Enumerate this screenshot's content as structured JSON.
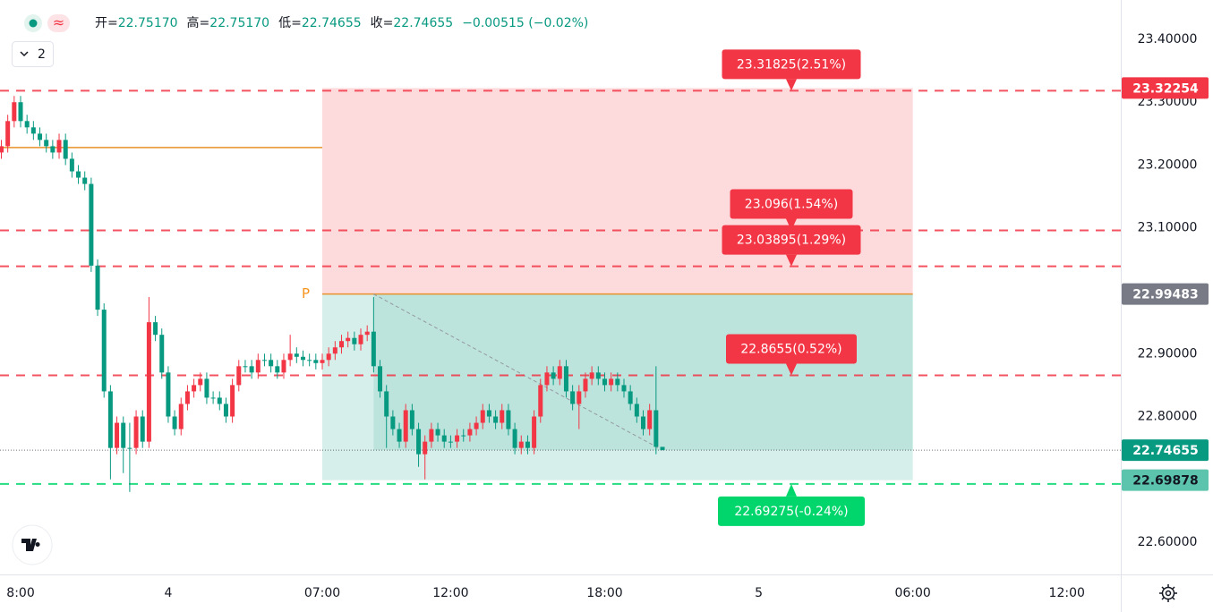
{
  "chart_data": {
    "type": "candlestick",
    "legend_values": [
      {
        "label": "开=",
        "value": "22.75170"
      },
      {
        "label": "高=",
        "value": "22.75170"
      },
      {
        "label": "低=",
        "value": "22.74655"
      },
      {
        "label": "收=",
        "value": "22.74655"
      }
    ],
    "change": "−0.00515 (−0.02%)",
    "interval_button": "2",
    "categories": [
      null,
      null,
      null,
      "8:00",
      null,
      null,
      null,
      null,
      null,
      null,
      null,
      null,
      null,
      null,
      null,
      null,
      null,
      null,
      null,
      null,
      null,
      null,
      null,
      null,
      null,
      null,
      "4",
      null,
      null,
      null,
      null,
      null,
      null,
      null,
      null,
      null,
      null,
      null,
      null,
      null,
      null,
      null,
      null,
      null,
      null,
      null,
      null,
      null,
      null,
      null,
      "07:00",
      null,
      null,
      null,
      null,
      null,
      null,
      null,
      null,
      null,
      null,
      null,
      null,
      null,
      null,
      null,
      null,
      null,
      null,
      null,
      "12:00",
      null,
      null,
      null,
      null,
      null,
      null,
      null,
      null,
      null,
      null,
      null,
      null,
      null,
      null,
      null,
      null,
      null,
      null,
      null,
      null,
      null,
      null,
      null,
      "18:00",
      null,
      null,
      null,
      null,
      null,
      null,
      null,
      null,
      null,
      null,
      null,
      null,
      null,
      null,
      null,
      null,
      null,
      null,
      null,
      null,
      null,
      null,
      null,
      "5",
      null,
      null,
      null,
      null,
      null,
      null,
      null,
      null,
      null,
      null,
      null,
      null,
      null,
      null,
      null,
      null,
      null,
      null,
      null,
      null,
      null,
      null,
      null,
      "06:00",
      null,
      null,
      null,
      null,
      null,
      null,
      null,
      null,
      null,
      null,
      null,
      null,
      null,
      null,
      null,
      null,
      null,
      null,
      null,
      null,
      null,
      null,
      null,
      "12:00",
      null,
      null,
      null,
      null,
      null,
      null,
      null,
      null
    ],
    "open": [
      23.22,
      23.23,
      23.27,
      23.3,
      23.27,
      23.26,
      23.25,
      23.24,
      23.23,
      23.22,
      23.24,
      23.21,
      23.19,
      23.18,
      23.17,
      23.04,
      22.97,
      22.84,
      22.75,
      22.79,
      22.75,
      22.75,
      22.8,
      22.76,
      22.95,
      22.93,
      22.87,
      22.8,
      22.78,
      22.82,
      22.84,
      22.85,
      22.86,
      22.83,
      22.83,
      22.82,
      22.8,
      22.85,
      22.88,
      22.88,
      22.87,
      22.89,
      22.89,
      22.88,
      22.87,
      22.89,
      22.9,
      22.895,
      22.89,
      22.89,
      22.885,
      22.89,
      22.9,
      22.91,
      22.92,
      22.925,
      22.915,
      22.93,
      22.935,
      22.88,
      22.84,
      22.8,
      22.78,
      22.76,
      22.81,
      22.78,
      22.74,
      22.76,
      22.78,
      22.77,
      22.76,
      22.76,
      22.77,
      22.77,
      22.78,
      22.79,
      22.81,
      22.8,
      22.79,
      22.81,
      22.78,
      22.75,
      22.76,
      22.75,
      22.8,
      22.85,
      22.87,
      22.86,
      22.88,
      22.84,
      22.82,
      22.84,
      22.86,
      22.87,
      22.86,
      22.85,
      22.86,
      22.85,
      22.84,
      22.82,
      22.8,
      22.78,
      22.81,
      22.7517,
      null,
      null,
      null,
      null,
      null,
      null,
      null,
      null,
      null,
      null,
      null,
      null,
      null,
      null,
      null,
      null,
      null,
      null,
      null,
      null,
      null,
      null,
      null,
      null,
      null,
      null,
      null,
      null,
      null,
      null,
      null,
      null,
      null,
      null,
      null,
      null,
      null,
      null,
      null,
      null,
      null,
      null,
      null,
      null,
      null,
      null,
      null,
      null,
      null,
      null,
      null,
      null,
      null,
      null,
      null,
      null,
      null,
      null,
      null,
      null,
      null,
      null,
      null,
      null,
      null,
      null,
      null,
      null,
      null,
      null,
      null
    ],
    "high": [
      23.24,
      23.28,
      23.31,
      23.31,
      23.28,
      23.27,
      23.26,
      23.25,
      23.24,
      23.25,
      23.25,
      23.22,
      23.2,
      23.19,
      23.18,
      23.05,
      22.98,
      22.85,
      22.8,
      22.8,
      22.79,
      22.81,
      22.81,
      22.99,
      22.96,
      22.94,
      22.88,
      22.81,
      22.83,
      22.85,
      22.86,
      22.87,
      22.87,
      22.84,
      22.84,
      22.83,
      22.86,
      22.89,
      22.89,
      22.89,
      22.9,
      22.9,
      22.9,
      22.89,
      22.9,
      22.93,
      22.91,
      22.905,
      22.9,
      22.9,
      22.9,
      22.91,
      22.92,
      22.93,
      22.935,
      22.935,
      22.94,
      22.945,
      22.99,
      22.89,
      22.85,
      22.81,
      22.79,
      22.82,
      22.82,
      22.79,
      22.77,
      22.79,
      22.79,
      22.78,
      22.77,
      22.78,
      22.78,
      22.79,
      22.8,
      22.82,
      22.82,
      22.81,
      22.82,
      22.82,
      22.79,
      22.77,
      22.77,
      22.81,
      22.86,
      22.88,
      22.88,
      22.89,
      22.89,
      22.85,
      22.85,
      22.87,
      22.88,
      22.88,
      22.87,
      22.87,
      22.87,
      22.86,
      22.85,
      22.83,
      22.81,
      22.82,
      22.88,
      22.7517,
      null,
      null,
      null,
      null,
      null,
      null,
      null,
      null,
      null,
      null,
      null,
      null,
      null,
      null,
      null,
      null,
      null,
      null,
      null,
      null,
      null,
      null,
      null,
      null,
      null,
      null,
      null,
      null,
      null,
      null,
      null,
      null,
      null,
      null,
      null,
      null,
      null,
      null,
      null,
      null,
      null,
      null,
      null,
      null,
      null,
      null,
      null,
      null,
      null,
      null,
      null,
      null,
      null,
      null,
      null,
      null,
      null,
      null,
      null,
      null,
      null,
      null,
      null,
      null,
      null,
      null,
      null,
      null,
      null,
      null,
      null
    ],
    "low": [
      23.21,
      23.22,
      23.26,
      23.26,
      23.25,
      23.24,
      23.23,
      23.22,
      23.21,
      23.21,
      23.2,
      23.18,
      23.17,
      23.16,
      23.03,
      22.96,
      22.83,
      22.7,
      22.74,
      22.71,
      22.68,
      22.74,
      22.75,
      22.75,
      22.92,
      22.86,
      22.79,
      22.77,
      22.77,
      22.81,
      22.83,
      22.84,
      22.82,
      22.82,
      22.81,
      22.79,
      22.79,
      22.84,
      22.87,
      22.86,
      22.86,
      22.88,
      22.87,
      22.86,
      22.86,
      22.88,
      22.885,
      22.88,
      22.88,
      22.875,
      22.875,
      22.88,
      22.89,
      22.9,
      22.91,
      22.905,
      22.905,
      22.92,
      22.87,
      22.83,
      22.75,
      22.77,
      22.75,
      22.75,
      22.77,
      22.72,
      22.7,
      22.75,
      22.76,
      22.75,
      22.75,
      22.75,
      22.76,
      22.76,
      22.77,
      22.78,
      22.79,
      22.78,
      22.78,
      22.77,
      22.74,
      22.74,
      22.74,
      22.74,
      22.79,
      22.84,
      22.85,
      22.85,
      22.83,
      22.81,
      22.78,
      22.83,
      22.85,
      22.85,
      22.84,
      22.84,
      22.84,
      22.83,
      22.81,
      22.79,
      22.77,
      22.77,
      22.74,
      22.74655,
      null,
      null,
      null,
      null,
      null,
      null,
      null,
      null,
      null,
      null,
      null,
      null,
      null,
      null,
      null,
      null,
      null,
      null,
      null,
      null,
      null,
      null,
      null,
      null,
      null,
      null,
      null,
      null,
      null,
      null,
      null,
      null,
      null,
      null,
      null,
      null,
      null,
      null,
      null,
      null,
      null,
      null,
      null,
      null,
      null,
      null,
      null,
      null,
      null,
      null,
      null,
      null,
      null,
      null,
      null,
      null,
      null,
      null,
      null,
      null,
      null,
      null,
      null,
      null,
      null,
      null,
      null,
      null,
      null,
      null,
      null
    ],
    "close": [
      23.23,
      23.27,
      23.3,
      23.27,
      23.26,
      23.25,
      23.24,
      23.23,
      23.22,
      23.24,
      23.21,
      23.19,
      23.18,
      23.17,
      23.04,
      22.97,
      22.84,
      22.75,
      22.79,
      22.75,
      22.75,
      22.8,
      22.76,
      22.95,
      22.93,
      22.87,
      22.8,
      22.78,
      22.82,
      22.84,
      22.85,
      22.86,
      22.83,
      22.83,
      22.82,
      22.8,
      22.85,
      22.88,
      22.88,
      22.87,
      22.89,
      22.89,
      22.88,
      22.87,
      22.89,
      22.9,
      22.895,
      22.89,
      22.89,
      22.885,
      22.89,
      22.9,
      22.91,
      22.92,
      22.925,
      22.915,
      22.93,
      22.935,
      22.88,
      22.84,
      22.8,
      22.78,
      22.76,
      22.81,
      22.78,
      22.74,
      22.76,
      22.78,
      22.77,
      22.76,
      22.76,
      22.77,
      22.77,
      22.78,
      22.79,
      22.81,
      22.8,
      22.79,
      22.81,
      22.78,
      22.75,
      22.76,
      22.75,
      22.8,
      22.85,
      22.87,
      22.86,
      22.88,
      22.84,
      22.82,
      22.84,
      22.86,
      22.87,
      22.86,
      22.85,
      22.86,
      22.85,
      22.84,
      22.82,
      22.8,
      22.78,
      22.81,
      22.7517,
      22.74655,
      null,
      null,
      null,
      null,
      null,
      null,
      null,
      null,
      null,
      null,
      null,
      null,
      null,
      null,
      null,
      null,
      null,
      null,
      null,
      null,
      null,
      null,
      null,
      null,
      null,
      null,
      null,
      null,
      null,
      null,
      null,
      null,
      null,
      null,
      null,
      null,
      null,
      null,
      null,
      null,
      null,
      null,
      null,
      null,
      null,
      null,
      null,
      null,
      null,
      null,
      null,
      null,
      null,
      null,
      null,
      null,
      null,
      null,
      null,
      null,
      null,
      null,
      null,
      null,
      null,
      null,
      null,
      null,
      null,
      null,
      null
    ],
    "up_color": "#f23645",
    "down_color": "#089981",
    "ylim": [
      22.5488,
      23.4626
    ],
    "yticks": [
      {
        "value": 23.4,
        "label": "23.40000"
      },
      {
        "value": 23.3,
        "label": "23.30000"
      },
      {
        "value": 23.2,
        "label": "23.20000"
      },
      {
        "value": 23.1,
        "label": "23.10000"
      },
      {
        "value": 22.9,
        "label": "22.90000"
      },
      {
        "value": 22.8,
        "label": "22.80000"
      },
      {
        "value": 22.6,
        "label": "22.60000"
      }
    ],
    "last_price": 22.74655,
    "reference_line": 23.228,
    "position": {
      "entry": 22.99483,
      "target": 23.32254,
      "stop": 22.69878,
      "entry_marker": "P"
    },
    "levels": [
      {
        "value": 23.31825,
        "label": "23.31825(2.51%)",
        "color": "#f23645"
      },
      {
        "value": 23.096,
        "label": "23.096(1.54%)",
        "color": "#f23645"
      },
      {
        "value": 23.03895,
        "label": "23.03895(1.29%)",
        "color": "#f23645"
      },
      {
        "value": 22.8655,
        "label": "22.8655(0.52%)",
        "color": "#f23645"
      },
      {
        "value": 22.69275,
        "label": "22.69275(-0.24%)",
        "color": "#00d66b"
      }
    ]
  }
}
